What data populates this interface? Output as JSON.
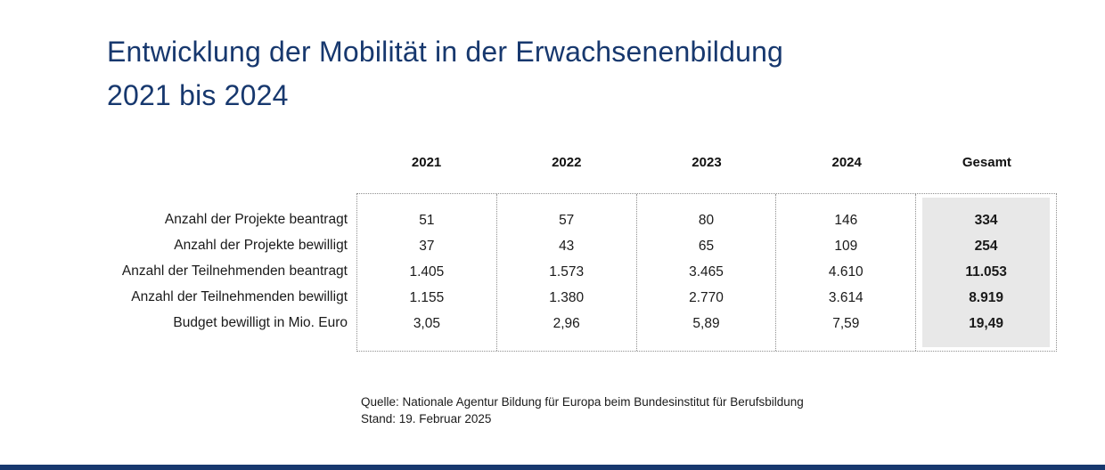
{
  "title": {
    "line1": "Entwicklung der Mobilität in der Erwachsenenbildung",
    "line2": "2021 bis 2024"
  },
  "table": {
    "column_headers": [
      "2021",
      "2022",
      "2023",
      "2024",
      "Gesamt"
    ],
    "rows": [
      {
        "label": "Anzahl der Projekte beantragt",
        "values": [
          "51",
          "57",
          "80",
          "146"
        ],
        "total": "334"
      },
      {
        "label": "Anzahl der Projekte bewilligt",
        "values": [
          "37",
          "43",
          "65",
          "109"
        ],
        "total": "254"
      },
      {
        "label": "Anzahl der Teilnehmenden beantragt",
        "values": [
          "1.405",
          "1.573",
          "3.465",
          "4.610"
        ],
        "total": "11.053"
      },
      {
        "label": "Anzahl der Teilnehmenden bewilligt",
        "values": [
          "1.155",
          "1.380",
          "2.770",
          "3.614"
        ],
        "total": "8.919"
      },
      {
        "label": "Budget bewilligt in Mio. Euro",
        "values": [
          "3,05",
          "2,96",
          "5,89",
          "7,59"
        ],
        "total": "19,49"
      }
    ]
  },
  "footer": {
    "source": "Quelle: Nationale Agentur Bildung für Europa beim Bundesinstitut für Berufsbildung",
    "date": "Stand: 19. Februar 2025"
  },
  "colors": {
    "title_blue": "#17386E",
    "total_column_bg": "#e8e8e8",
    "dotted_border": "#8f8f8f",
    "body_text": "#1a1a1a"
  },
  "chart_data": {
    "type": "table",
    "title": "Entwicklung der Mobilität in der Erwachsenenbildung 2021 bis 2024",
    "categories": [
      "2021",
      "2022",
      "2023",
      "2024",
      "Gesamt"
    ],
    "series": [
      {
        "name": "Anzahl der Projekte beantragt",
        "values": [
          51,
          57,
          80,
          146,
          334
        ]
      },
      {
        "name": "Anzahl der Projekte bewilligt",
        "values": [
          37,
          43,
          65,
          109,
          254
        ]
      },
      {
        "name": "Anzahl der Teilnehmenden beantragt",
        "values": [
          1405,
          1573,
          3465,
          4610,
          11053
        ]
      },
      {
        "name": "Anzahl der Teilnehmenden bewilligt",
        "values": [
          1155,
          1380,
          2770,
          3614,
          8919
        ]
      },
      {
        "name": "Budget bewilligt in Mio. Euro",
        "values": [
          3.05,
          2.96,
          5.89,
          7.59,
          19.49
        ]
      }
    ],
    "notes": [
      "Quelle: Nationale Agentur Bildung für Europa beim Bundesinstitut für Berufsbildung",
      "Stand: 19. Februar 2025"
    ],
    "layout": {
      "totals_column_highlighted": true,
      "grid": "dotted"
    }
  }
}
